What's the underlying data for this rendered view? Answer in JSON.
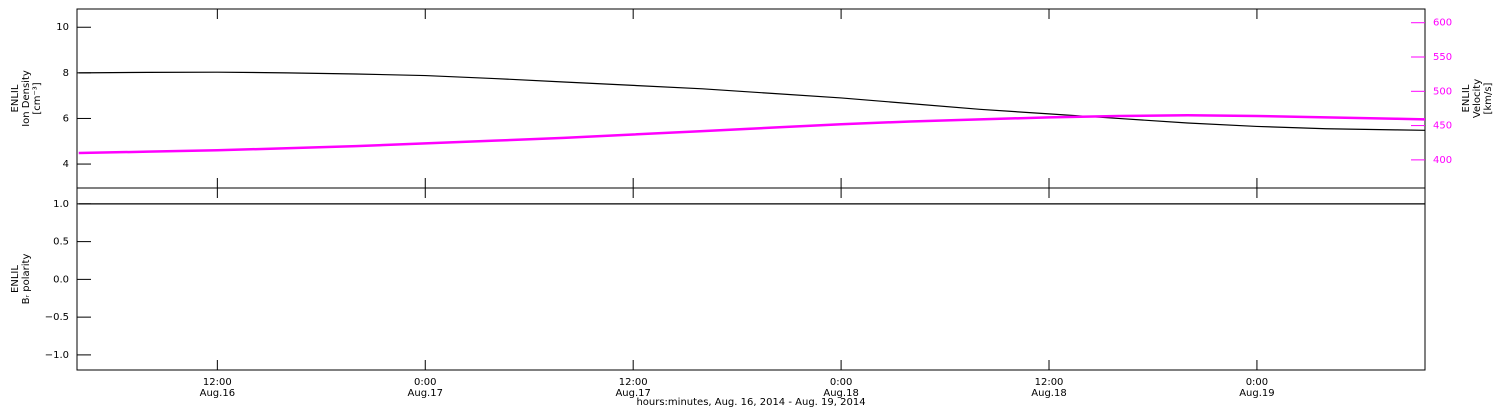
{
  "chart_data": [
    {
      "type": "line",
      "ylabel": [
        "ENLIL",
        "Ion Density",
        "[cm⁻³]"
      ],
      "y2label": [
        "ENLIL",
        "Velocity",
        "[km/s]"
      ],
      "x": [
        4,
        8,
        12,
        16,
        20,
        24,
        28,
        32,
        36,
        40,
        44,
        48,
        52,
        56,
        60,
        64,
        68,
        72,
        76,
        80,
        81.7
      ],
      "xlim": [
        3.9,
        81.7
      ],
      "ylim": [
        2.95,
        10.8
      ],
      "yticks": [
        4,
        6,
        8,
        10
      ],
      "y2lim": [
        359,
        620
      ],
      "y2ticks": [
        400,
        450,
        500,
        550,
        600
      ],
      "series": [
        {
          "name": "Ion Density",
          "color": "#000000",
          "values": [
            8.0,
            8.02,
            8.03,
            8.0,
            7.95,
            7.88,
            7.75,
            7.6,
            7.45,
            7.3,
            7.1,
            6.9,
            6.65,
            6.4,
            6.2,
            6.0,
            5.8,
            5.65,
            5.55,
            5.5,
            5.48
          ]
        },
        {
          "name": "Velocity",
          "color": "#ff00ff",
          "axis": "y2",
          "values": [
            410,
            412,
            414,
            417,
            420,
            424,
            428,
            432,
            437,
            442,
            447,
            452,
            456,
            459,
            462,
            464,
            465,
            464,
            462,
            460,
            459
          ]
        }
      ]
    },
    {
      "type": "line",
      "ylabel": [
        "ENLIL",
        "Bᵣ polarity"
      ],
      "xlabel": "hours:minutes, Aug. 16, 2014 - Aug. 19, 2014",
      "x": [
        4,
        8,
        12,
        16,
        20,
        24,
        28,
        32,
        36,
        40,
        44,
        48,
        52,
        56,
        60,
        64,
        68,
        72,
        76,
        80,
        81.7
      ],
      "xlim": [
        3.9,
        81.7
      ],
      "xticks": [
        {
          "value": 12,
          "label": "12:00 Aug.16"
        },
        {
          "value": 24,
          "label": "0:00 Aug.17"
        },
        {
          "value": 36,
          "label": "12:00 Aug.17"
        },
        {
          "value": 48,
          "label": "0:00 Aug.18"
        },
        {
          "value": 60,
          "label": "12:00 Aug.18"
        },
        {
          "value": 72,
          "label": "0:00 Aug.19"
        }
      ],
      "ylim": [
        -1.2,
        1.21
      ],
      "yticks": [
        {
          "value": -1,
          "label": "−1.0"
        },
        {
          "value": -0.5,
          "label": "−0.5"
        },
        {
          "value": 0,
          "label": "0.0"
        },
        {
          "value": 0.5,
          "label": "0.5"
        },
        {
          "value": 1,
          "label": "1.0"
        }
      ],
      "series": [
        {
          "name": "Br polarity",
          "color": "#000000",
          "values": [
            1,
            1,
            1,
            1,
            1,
            1,
            1,
            1,
            1,
            1,
            1,
            1,
            1,
            1,
            1,
            1,
            1,
            1,
            1,
            1,
            1
          ]
        }
      ]
    }
  ]
}
